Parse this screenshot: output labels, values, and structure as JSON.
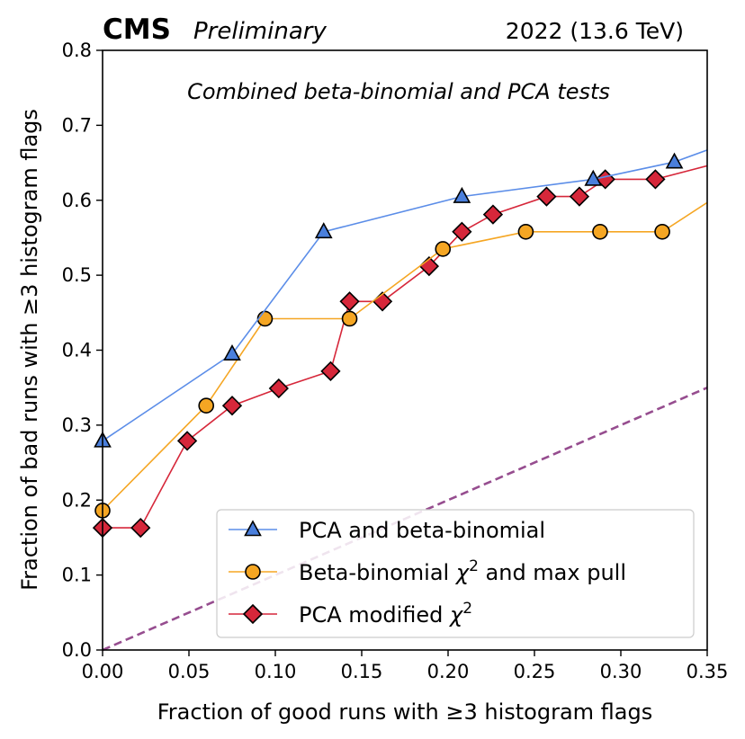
{
  "header": {
    "experiment": "CMS",
    "status": "Preliminary",
    "run_info": "2022 (13.6 TeV)"
  },
  "chart_data": {
    "type": "line",
    "title": "Combined beta-binomial and PCA tests",
    "xlabel": "Fraction of good runs with ≥3 histogram flags",
    "ylabel": "Fraction of bad runs with ≥3 histogram flags",
    "xlim": [
      0.0,
      0.35
    ],
    "ylim": [
      0.0,
      0.8
    ],
    "xticks": [
      "0.00",
      "0.05",
      "0.10",
      "0.15",
      "0.20",
      "0.25",
      "0.30",
      "0.35"
    ],
    "yticks": [
      "0.0",
      "0.1",
      "0.2",
      "0.3",
      "0.4",
      "0.5",
      "0.6",
      "0.7",
      "0.8"
    ],
    "grid": false,
    "legend_placement": "lower-right",
    "series": [
      {
        "name": "PCA and beta-binomial",
        "marker": "triangle",
        "color": "#5b8de8",
        "marker_color": "#4a7fdc",
        "x": [
          0.0,
          0.075,
          0.128,
          0.208,
          0.284,
          0.331,
          0.35
        ],
        "y": [
          0.279,
          0.395,
          0.558,
          0.605,
          0.628,
          0.651,
          0.667
        ],
        "markers": [
          true,
          true,
          true,
          true,
          true,
          true,
          false
        ]
      },
      {
        "name": "Beta-binomial χ² and max pull",
        "legend_parts": [
          "Beta-binomial ",
          "χ",
          "2",
          " and max pull"
        ],
        "marker": "circle",
        "color": "#f5a623",
        "marker_color": "#f5a623",
        "x": [
          0.0,
          0.06,
          0.094,
          0.143,
          0.197,
          0.245,
          0.288,
          0.324,
          0.35
        ],
        "y": [
          0.186,
          0.326,
          0.442,
          0.442,
          0.535,
          0.558,
          0.558,
          0.558,
          0.597
        ],
        "markers": [
          true,
          true,
          true,
          true,
          true,
          true,
          true,
          true,
          false
        ]
      },
      {
        "name": "PCA modified χ²",
        "legend_parts": [
          "PCA modified ",
          "χ",
          "2",
          ""
        ],
        "marker": "diamond",
        "color": "#d6273a",
        "marker_color": "#d6273a",
        "x": [
          0.0,
          0.022,
          0.049,
          0.075,
          0.102,
          0.132,
          0.143,
          0.162,
          0.189,
          0.208,
          0.226,
          0.257,
          0.276,
          0.291,
          0.32,
          0.35
        ],
        "y": [
          0.163,
          0.163,
          0.279,
          0.326,
          0.349,
          0.372,
          0.465,
          0.465,
          0.512,
          0.558,
          0.581,
          0.605,
          0.605,
          0.628,
          0.628,
          0.646
        ],
        "markers": [
          true,
          true,
          true,
          true,
          true,
          true,
          true,
          true,
          true,
          true,
          true,
          true,
          true,
          true,
          true,
          false
        ]
      },
      {
        "name": "",
        "style": "dashed",
        "color": "#964d8f",
        "x": [
          0.0,
          0.35
        ],
        "y": [
          0.0,
          0.35
        ],
        "markers": [
          false,
          false
        ]
      }
    ]
  }
}
